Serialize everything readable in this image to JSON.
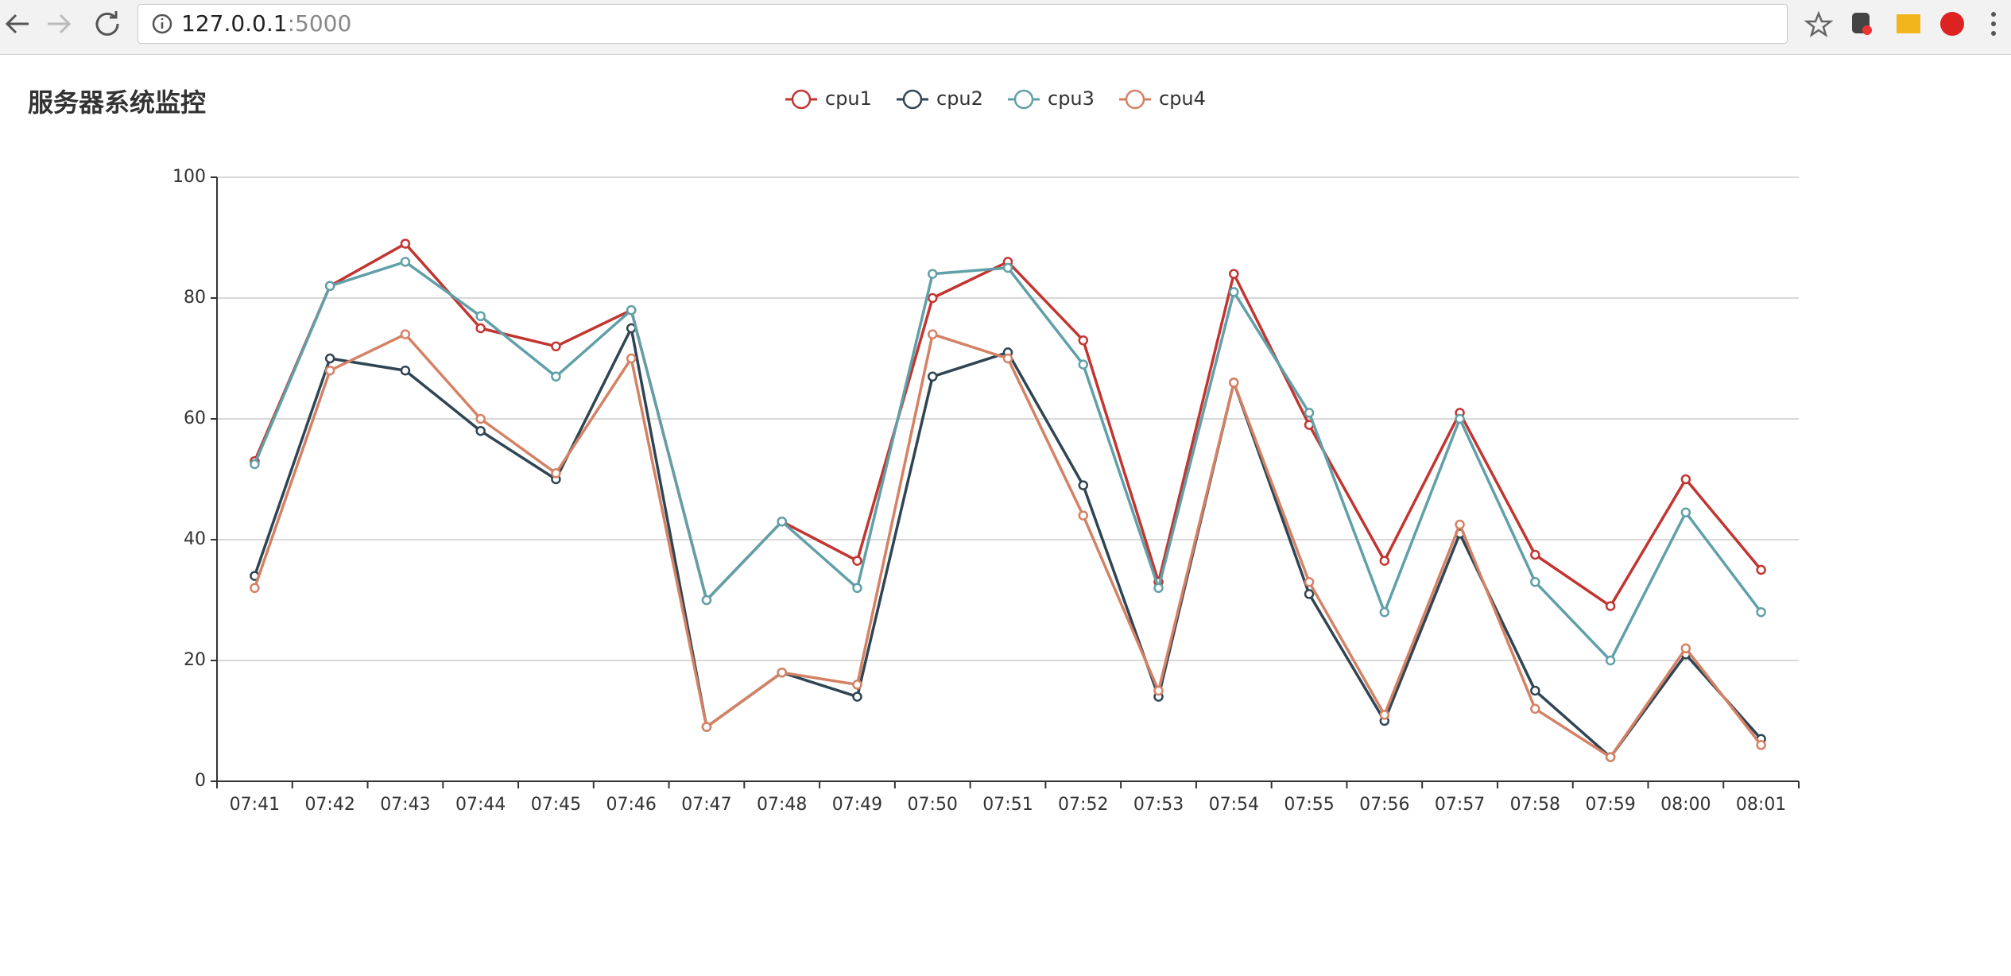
{
  "browser": {
    "host": "127.0.0.1",
    "port": ":5000"
  },
  "chart_data": {
    "type": "line",
    "title": "服务器系统监控",
    "categories": [
      "07:41",
      "07:42",
      "07:43",
      "07:44",
      "07:45",
      "07:46",
      "07:47",
      "07:48",
      "07:49",
      "07:50",
      "07:51",
      "07:52",
      "07:53",
      "07:54",
      "07:55",
      "07:56",
      "07:57",
      "07:58",
      "07:59",
      "08:00",
      "08:01"
    ],
    "series": [
      {
        "name": "cpu1",
        "color": "#c23531",
        "values": [
          53,
          82,
          89,
          75,
          72,
          78,
          30,
          43,
          36.5,
          80,
          86,
          73,
          33,
          84,
          59,
          36.5,
          61,
          37.5,
          29,
          50,
          35
        ]
      },
      {
        "name": "cpu2",
        "color": "#2f4554",
        "values": [
          34,
          70,
          68,
          58,
          50,
          75,
          9,
          18,
          14,
          67,
          71,
          49,
          14,
          66,
          31,
          10,
          41,
          15,
          4,
          21,
          7
        ]
      },
      {
        "name": "cpu3",
        "color": "#61a0a8",
        "values": [
          52.5,
          82,
          86,
          77,
          67,
          78,
          30,
          43,
          32,
          84,
          85,
          69,
          32,
          81,
          61,
          28,
          60,
          33,
          20,
          44.5,
          28
        ]
      },
      {
        "name": "cpu4",
        "color": "#d48265",
        "values": [
          32,
          68,
          74,
          60,
          51,
          70,
          9,
          18,
          16,
          74,
          70,
          44,
          15,
          66,
          33,
          11,
          42.5,
          12,
          4,
          22,
          6
        ]
      }
    ],
    "ylim": [
      0,
      100
    ],
    "yticks": [
      0,
      20,
      40,
      60,
      80,
      100
    ],
    "grid": true
  }
}
